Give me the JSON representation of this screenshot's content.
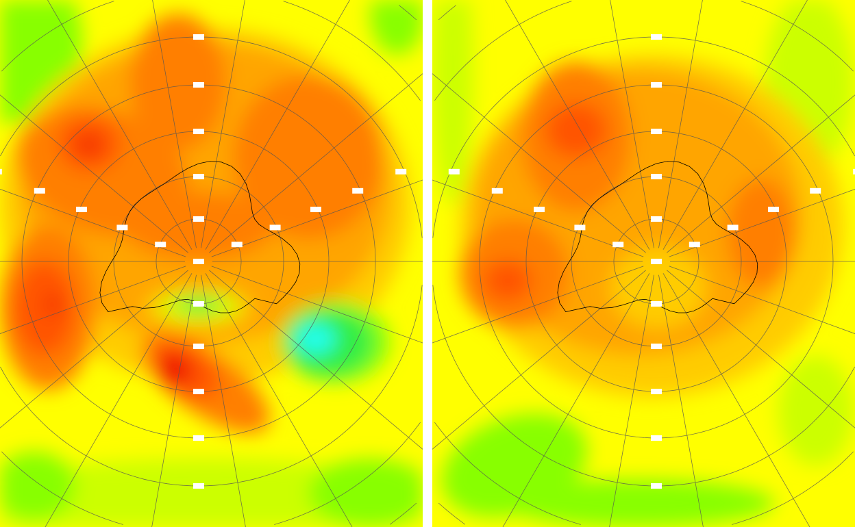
{
  "panels": [
    {
      "id": "left",
      "projection": "south-polar-stereographic"
    },
    {
      "id": "right",
      "projection": "south-polar-stereographic"
    }
  ],
  "colors": {
    "background": "#ffff00",
    "light_green": "#88ff00",
    "yellow_green": "#ccff00",
    "light_orange": "#ffcc00",
    "orange": "#ffa500",
    "dark_orange": "#ff7f00",
    "red_orange": "#ff5500",
    "red": "#ee1100",
    "green": "#33ee44",
    "cyan": "#22ffee",
    "gridline": "#555555",
    "coastline": "#000000"
  }
}
